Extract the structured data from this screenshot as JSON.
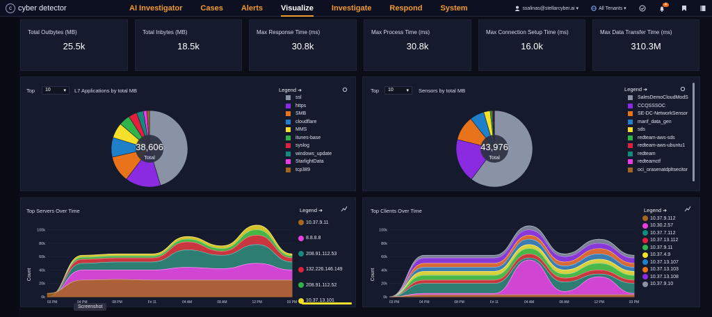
{
  "app": {
    "name": "cyber detector",
    "logo_letter": "c"
  },
  "nav": [
    "AI Investigator",
    "Cases",
    "Alerts",
    "Visualize",
    "Investigate",
    "Respond",
    "System"
  ],
  "nav_active": "Visualize",
  "user": {
    "email": "ssalinas@stellarcyber.ai ▾",
    "tenant": "All Tenants ▾",
    "notifications": "4"
  },
  "kpis": [
    {
      "title": "Total Outbytes (MB)",
      "value": "25.5k"
    },
    {
      "title": "Total Inbytes (MB)",
      "value": "18.5k"
    },
    {
      "title": "Max Response Time (ms)",
      "value": "30.8k"
    },
    {
      "title": "Max Process Time (ms)",
      "value": "30.8k"
    },
    {
      "title": "Max Connection Setup Time (ms)",
      "value": "16.0k"
    },
    {
      "title": "Max Data Transfer Time (ms)",
      "value": "310.3M"
    }
  ],
  "left_pie": {
    "top_label": "Top",
    "top_value": "10",
    "title": "L7 Applications by total MB",
    "legend_title": "Legend",
    "total": "38,606",
    "total_label": "Total",
    "items": [
      {
        "label": "ssl",
        "color": "#8a93a6"
      },
      {
        "label": "https",
        "color": "#8a2be2"
      },
      {
        "label": "SMB",
        "color": "#e8731a"
      },
      {
        "label": "cloudflare",
        "color": "#1f7fc8"
      },
      {
        "label": "MMS",
        "color": "#f4e02a"
      },
      {
        "label": "itunes-base",
        "color": "#2fb44a"
      },
      {
        "label": "syslog",
        "color": "#e0203c"
      },
      {
        "label": "windows_update",
        "color": "#138a7d"
      },
      {
        "label": "StarlightData",
        "color": "#ec3be3"
      },
      {
        "label": "tcp389",
        "color": "#a5651e"
      }
    ]
  },
  "right_pie": {
    "top_label": "Top",
    "top_value": "10",
    "title": "Sensors by total MB",
    "legend_title": "Legend",
    "total": "43,976",
    "total_label": "Total",
    "items": [
      {
        "label": "SalesDemoCloudModS",
        "color": "#8a93a6"
      },
      {
        "label": "CCQSSSOC",
        "color": "#8a2be2"
      },
      {
        "label": "SE-DC-NetworkSensor",
        "color": "#e8731a"
      },
      {
        "label": "manf_data_gen",
        "color": "#1f7fc8"
      },
      {
        "label": "sds",
        "color": "#f4e02a"
      },
      {
        "label": "redteam-aws-sds",
        "color": "#2fb44a"
      },
      {
        "label": "redteam-aws-ubuntu1",
        "color": "#e0203c"
      },
      {
        "label": "redteam",
        "color": "#138a7d"
      },
      {
        "label": "redteamctf",
        "color": "#ec3be3"
      },
      {
        "label": "oci_orasenatdpltsecitor",
        "color": "#a5651e"
      }
    ]
  },
  "left_area": {
    "title": "Top Servers Over Time",
    "legend_title": "Legend",
    "ylabel": "Count",
    "yticks": [
      "100k",
      "80k",
      "60k",
      "40k",
      "20k",
      "0k"
    ],
    "xticks": [
      "03 PM",
      "04 PM",
      "08 PM",
      "Fri 11",
      "04 AM",
      "08 AM",
      "12 PM",
      "03 PM"
    ],
    "items": [
      {
        "label": "10.37.9.11",
        "color": "#a5651e"
      },
      {
        "label": "8.8.8.8",
        "color": "#ec3be3"
      },
      {
        "label": "208.91.112.53",
        "color": "#138a7d"
      },
      {
        "label": "132.226.146.149",
        "color": "#e0203c"
      },
      {
        "label": "208.91.112.52",
        "color": "#2fb44a"
      },
      {
        "label": "10.37.13.101",
        "color": "#f4e02a"
      }
    ]
  },
  "right_area": {
    "title": "Top Clients Over Time",
    "legend_title": "Legend",
    "ylabel": "Count",
    "yticks": [
      "100k",
      "80k",
      "60k",
      "40k",
      "20k",
      "0k"
    ],
    "xticks": [
      "03 PM",
      "04 PM",
      "08 PM",
      "Fri 11",
      "04 AM",
      "08 AM",
      "12 PM",
      "03 PM"
    ],
    "items": [
      {
        "label": "10.37.9.112",
        "color": "#a5651e"
      },
      {
        "label": "10.30.2.57",
        "color": "#ec3be3"
      },
      {
        "label": "10.37.7.112",
        "color": "#138a7d"
      },
      {
        "label": "10.37.13.112",
        "color": "#e0203c"
      },
      {
        "label": "10.37.9.11",
        "color": "#2fb44a"
      },
      {
        "label": "10.37.4.9",
        "color": "#f4e02a"
      },
      {
        "label": "10.37.13.107",
        "color": "#1f7fc8"
      },
      {
        "label": "10.37.13.103",
        "color": "#e8731a"
      },
      {
        "label": "10.37.13.108",
        "color": "#8a2be2"
      },
      {
        "label": "10.37.9.10",
        "color": "#8a93a6"
      }
    ]
  },
  "tooltip": "Screenshot",
  "chart_data": [
    {
      "type": "pie",
      "title": "L7 Applications by total MB",
      "categories": [
        "ssl",
        "https",
        "SMB",
        "cloudflare",
        "MMS",
        "itunes-base",
        "syslog",
        "windows_update",
        "StarlightData",
        "tcp389"
      ],
      "values": [
        17500,
        5800,
        4300,
        3200,
        2500,
        1800,
        1400,
        1100,
        600,
        406
      ]
    },
    {
      "type": "pie",
      "title": "Sensors by total MB",
      "categories": [
        "SalesDemoCloudModS",
        "CCQSSSOC",
        "SE-DC-NetworkSensor",
        "manf_data_gen",
        "sds",
        "redteam-aws-sds",
        "redteam-aws-ubuntu1",
        "redteam",
        "redteamctf",
        "oci_orasenatdpltsecitor"
      ],
      "values": [
        26500,
        8200,
        4600,
        2700,
        1200,
        350,
        200,
        120,
        70,
        36
      ]
    },
    {
      "type": "area",
      "title": "Top Servers Over Time",
      "ylabel": "Count",
      "ylim": [
        0,
        110000
      ],
      "x": [
        "03 PM",
        "04 PM",
        "08 PM",
        "Fri 11",
        "04 AM",
        "08 AM",
        "12 PM",
        "03 PM"
      ],
      "series": [
        {
          "name": "10.37.9.11",
          "values": [
            5000,
            25000,
            26000,
            25000,
            25000,
            25000,
            25000,
            25000
          ]
        },
        {
          "name": "8.8.8.8",
          "values": [
            0,
            40000,
            40000,
            40000,
            44000,
            42000,
            50000,
            40000
          ]
        },
        {
          "name": "208.91.112.53",
          "values": [
            0,
            50000,
            52000,
            52000,
            70000,
            62000,
            78000,
            52000
          ]
        },
        {
          "name": "132.226.146.149",
          "values": [
            0,
            56000,
            58000,
            58000,
            82000,
            68000,
            92000,
            58000
          ]
        },
        {
          "name": "208.91.112.52",
          "values": [
            0,
            59000,
            61000,
            61000,
            86000,
            72000,
            100000,
            61000
          ]
        },
        {
          "name": "10.37.13.101",
          "values": [
            0,
            62000,
            64000,
            64000,
            90000,
            76000,
            107000,
            64000
          ]
        }
      ]
    },
    {
      "type": "area",
      "title": "Top Clients Over Time",
      "ylabel": "Count",
      "ylim": [
        0,
        110000
      ],
      "x": [
        "03 PM",
        "04 PM",
        "08 PM",
        "Fri 11",
        "04 AM",
        "08 AM",
        "12 PM",
        "03 PM"
      ],
      "series": [
        {
          "name": "10.37.9.112",
          "values": [
            0,
            3000,
            3000,
            3000,
            3000,
            3000,
            3000,
            3000
          ]
        },
        {
          "name": "10.30.2.57",
          "values": [
            0,
            5000,
            5000,
            5000,
            55000,
            8000,
            30000,
            5000
          ]
        },
        {
          "name": "10.37.7.112",
          "values": [
            0,
            20000,
            20000,
            20000,
            58000,
            22000,
            34000,
            20000
          ]
        },
        {
          "name": "10.37.13.112",
          "values": [
            0,
            25000,
            25000,
            25000,
            64000,
            28000,
            40000,
            25000
          ]
        },
        {
          "name": "10.37.9.11",
          "values": [
            0,
            32000,
            32000,
            32000,
            72000,
            34000,
            50000,
            32000
          ]
        },
        {
          "name": "10.37.4.9",
          "values": [
            0,
            38000,
            38000,
            38000,
            78000,
            40000,
            56000,
            38000
          ]
        },
        {
          "name": "10.37.13.107",
          "values": [
            0,
            44000,
            44000,
            44000,
            86000,
            46000,
            64000,
            44000
          ]
        },
        {
          "name": "10.37.13.103",
          "values": [
            0,
            50000,
            50000,
            50000,
            92000,
            52000,
            72000,
            50000
          ]
        },
        {
          "name": "10.37.13.108",
          "values": [
            0,
            58000,
            58000,
            58000,
            100000,
            60000,
            80000,
            58000
          ]
        },
        {
          "name": "10.37.9.10",
          "values": [
            0,
            62000,
            62000,
            62000,
            106000,
            64000,
            86000,
            62000
          ]
        }
      ]
    }
  ]
}
